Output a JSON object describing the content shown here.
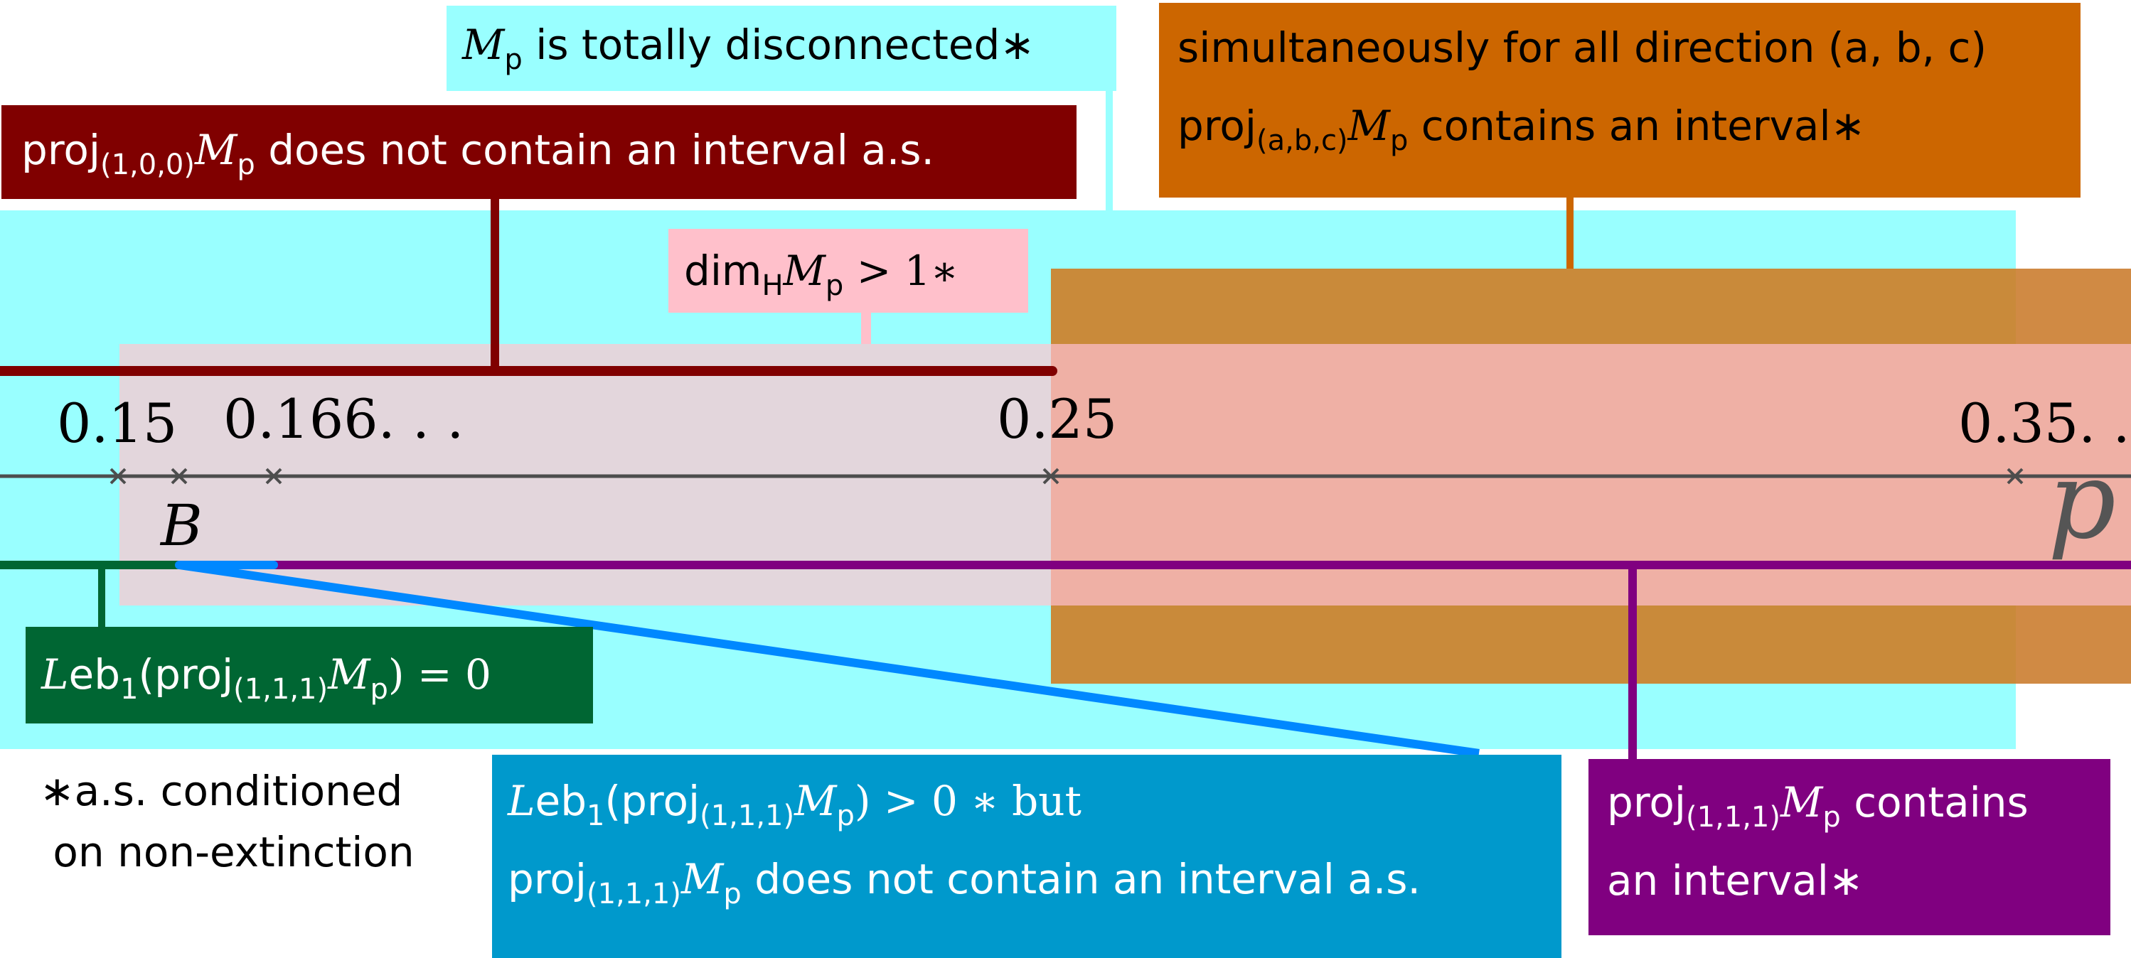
{
  "axis": {
    "variable": "p",
    "ticks": [
      {
        "value": 0.15,
        "label": "0.15"
      },
      {
        "value": 0.1667,
        "label": "0.166. . ."
      },
      {
        "value": 0.25,
        "label": "0.25"
      },
      {
        "value": 0.3596,
        "label": "0.35. . ."
      }
    ],
    "unlabeled_marks": [
      0.1347,
      0.1459
    ],
    "threshold_label": "B"
  },
  "labels": {
    "totally_disconnected": {
      "math": "M",
      "sub": "p",
      "text": " is totally disconnected∗"
    },
    "proj100": {
      "pre": "proj",
      "sub1": "(1,0,0)",
      "math": "M",
      "sub2": "p",
      "text": " does not contain an interval a.s."
    },
    "all_directions": {
      "line1": "simultaneously for all direction (a, b, c)",
      "pre": "proj",
      "sub1": "(a,b,c)",
      "math": "M",
      "sub2": "p",
      "text": " contains an interval∗"
    },
    "dim": {
      "pre": "dim",
      "sub1": "H",
      "math": "M",
      "sub2": "p",
      "text": " > 1∗"
    },
    "leb_zero": {
      "leb": "L",
      "eb": "eb",
      "sub0": "1",
      "pre": "(proj",
      "sub1": "(1,1,1)",
      "math": "M",
      "sub2": "p",
      "text": ") = 0"
    },
    "leb_positive": {
      "leb": "L",
      "eb": "eb",
      "sub0": "1",
      "pre": "(proj",
      "sub1": "(1,1,1)",
      "math": "M",
      "sub2": "p",
      "text": ") > 0 ∗  but",
      "pre2": "proj",
      "sub3": "(1,1,1)",
      "math2": "M",
      "sub4": "p",
      "text2": " does not contain an interval a.s."
    },
    "contains_interval": {
      "pre": "proj",
      "sub1": "(1,1,1)",
      "math": "M",
      "sub2": "p",
      "text": " contains",
      "line2": "an interval∗"
    }
  },
  "footnote": {
    "line1": "∗a.s. conditioned",
    "line2": " on non-extinction"
  },
  "colors": {
    "cyan": "#99ffff",
    "pink": "#ffc0cb",
    "pink_region": "#e3d6dc",
    "orange": "#cc6600",
    "orange_light": "#c98a3a",
    "salmon": "#efb0a5",
    "dark_red": "#800000",
    "dark_green": "#006633",
    "blue": "#0099cc",
    "bright_blue": "#0088ff",
    "purple": "#800080",
    "axis": "#4d4d4d"
  }
}
